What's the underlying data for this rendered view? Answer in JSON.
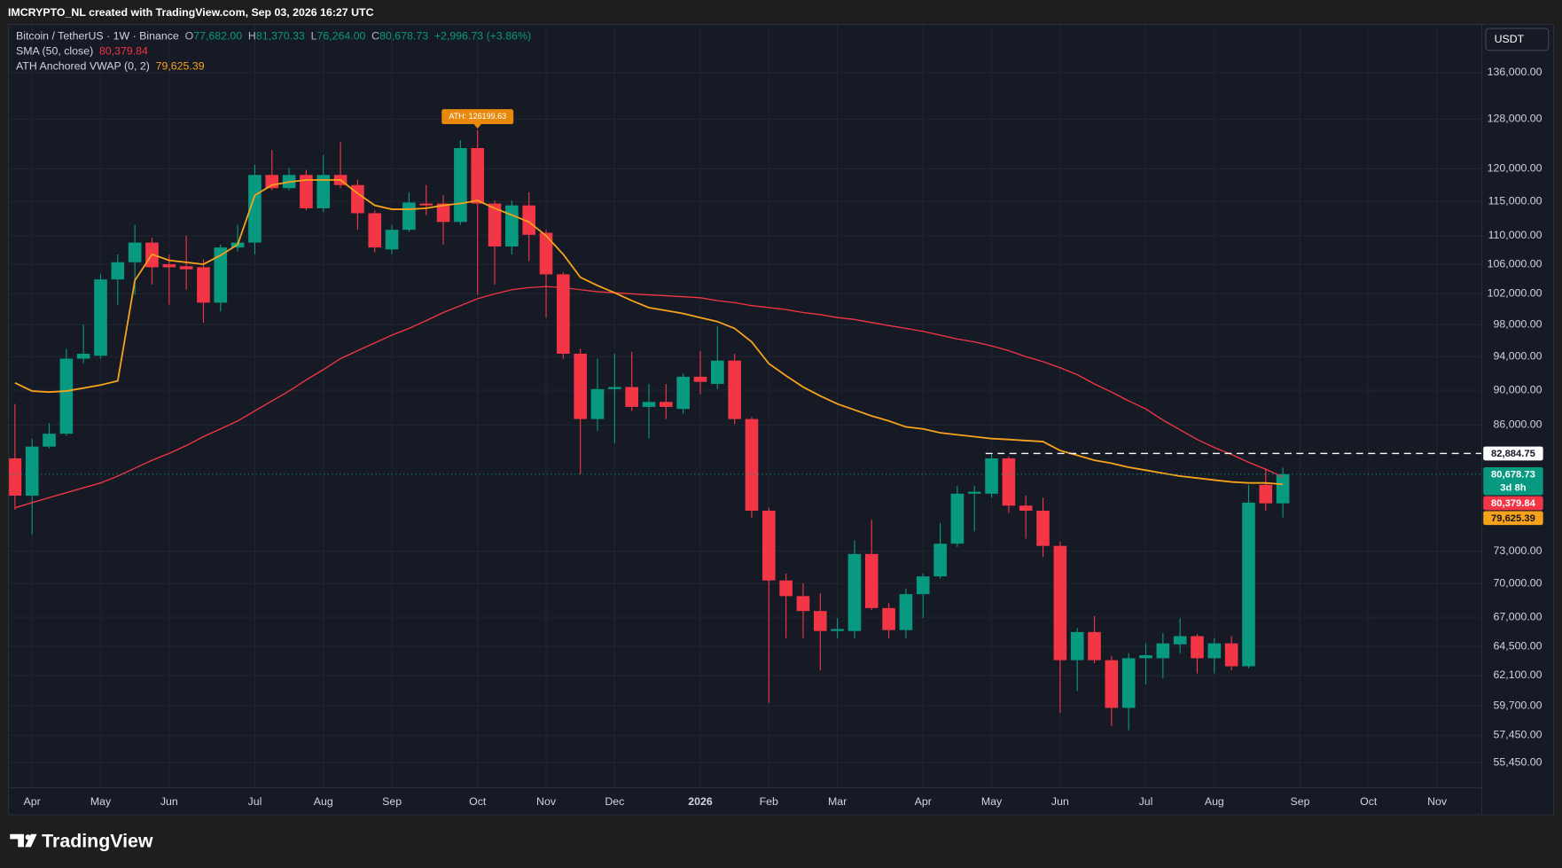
{
  "header": {
    "credit": "IMCRYPTO_NL created with TradingView.com, Sep 03, 2026 16:27 UTC",
    "symbol": "Bitcoin / TetherUS · 1W · Binance",
    "ohlc": [
      [
        "O",
        "77,682.00"
      ],
      [
        "H",
        "81,370.33"
      ],
      [
        "L",
        "76,264.00"
      ],
      [
        "C",
        "80,678.73"
      ]
    ],
    "change": "+2,996.73 (+3.86%)",
    "currency": "USDT"
  },
  "footer": {
    "logo": "TradingView"
  },
  "chart_data": {
    "type": "candlestick",
    "categories": [
      null,
      "Apr",
      null,
      null,
      null,
      "May",
      null,
      null,
      null,
      "Jun",
      null,
      null,
      null,
      null,
      "Jul",
      null,
      null,
      null,
      "Aug",
      null,
      null,
      null,
      "Sep",
      null,
      null,
      null,
      null,
      "Oct",
      null,
      null,
      null,
      "Nov",
      null,
      null,
      null,
      "Dec",
      null,
      null,
      null,
      null,
      "2026",
      null,
      null,
      null,
      "Feb",
      null,
      null,
      null,
      "Mar",
      null,
      null,
      null,
      null,
      "Apr",
      null,
      null,
      null,
      "May",
      null,
      null,
      null,
      "Jun",
      null,
      null,
      null,
      null,
      "Jul",
      null,
      null,
      null,
      "Aug",
      null,
      null,
      null,
      null,
      "Sep",
      null,
      null,
      null,
      "Oct",
      null,
      null,
      null,
      "Nov",
      null,
      null
    ],
    "open": [
      82360,
      78460,
      83630,
      85040,
      93760,
      94120,
      103930,
      106280,
      109030,
      106000,
      105720,
      105590,
      100840,
      108340,
      109030,
      119060,
      117030,
      119060,
      114000,
      119060,
      117500,
      113280,
      108070,
      110860,
      114710,
      114710,
      112000,
      123290,
      114710,
      108480,
      114430,
      110430,
      104620,
      94360,
      86680,
      90120,
      90360,
      88060,
      88630,
      87830,
      91580,
      90730,
      93520,
      86680,
      76940,
      70270,
      68850,
      67530,
      65800,
      65800,
      72730,
      67790,
      65880,
      69030,
      70640,
      73710,
      78660,
      78660,
      82360,
      77450,
      76940,
      73500,
      63350,
      65710,
      63350,
      59540,
      63510,
      63510,
      64670,
      65360,
      63510,
      64750,
      62850,
      79570,
      77682,
      null,
      null,
      null,
      null,
      null,
      null,
      null,
      null,
      null,
      null,
      null
    ],
    "high": [
      88400,
      84500,
      86230,
      94970,
      98000,
      104620,
      107380,
      111570,
      109720,
      107380,
      110000,
      106690,
      108760,
      111570,
      120630,
      122980,
      120160,
      119840,
      122200,
      124230,
      118280,
      113710,
      111570,
      116410,
      117500,
      115940,
      124550,
      126199.63,
      115140,
      115140,
      116410,
      110860,
      104900,
      94970,
      93760,
      94360,
      94600,
      90730,
      90730,
      91940,
      94730,
      97760,
      94360,
      86910,
      77240,
      70910,
      70000,
      69110,
      66910,
      74010,
      76030,
      68230,
      69550,
      70910,
      75720,
      79470,
      79470,
      82884.75,
      82570,
      78460,
      78260,
      73910,
      66050,
      67090,
      63680,
      63930,
      64750,
      65620,
      66910,
      65530,
      65190,
      65360,
      79570,
      81310,
      81370.33,
      null,
      null,
      null,
      null,
      null,
      null,
      null,
      null,
      null,
      null,
      null
    ],
    "low": [
      77040,
      74600,
      83420,
      84820,
      93150,
      93760,
      100580,
      101870,
      103240,
      100580,
      102550,
      98260,
      99680,
      107790,
      107380,
      116720,
      116720,
      113710,
      113430,
      117030,
      110860,
      107650,
      107380,
      110570,
      112990,
      108760,
      111570,
      101870,
      103240,
      107380,
      106410,
      98900,
      93760,
      80679,
      85360,
      83950,
      87600,
      84500,
      86680,
      87260,
      89540,
      90120,
      86110,
      76230,
      59930,
      65190,
      65190,
      62520,
      65190,
      65190,
      67620,
      65190,
      65190,
      66910,
      70450,
      73400,
      74900,
      78260,
      76730,
      74200,
      72450,
      59150,
      60870,
      63100,
      58140,
      57840,
      61410,
      61870,
      63920,
      62270,
      62270,
      62520,
      62680,
      76940,
      76264,
      null,
      null,
      null,
      null,
      null,
      null,
      null,
      null,
      null,
      null,
      null
    ],
    "close": [
      78460,
      83630,
      85040,
      93760,
      94360,
      103930,
      106280,
      109030,
      105590,
      105590,
      105310,
      100840,
      108340,
      109030,
      119060,
      117030,
      119060,
      114000,
      119060,
      117500,
      113280,
      108340,
      110860,
      114860,
      114430,
      112000,
      123290,
      114710,
      108480,
      114430,
      110140,
      104620,
      94360,
      86680,
      90120,
      90360,
      88060,
      88630,
      88060,
      91580,
      90970,
      93520,
      86680,
      76940,
      70270,
      68850,
      67530,
      65800,
      65970,
      72730,
      67790,
      65880,
      69030,
      70640,
      73710,
      78660,
      78860,
      82360,
      77450,
      76940,
      73500,
      63350,
      65710,
      63350,
      59540,
      63510,
      63760,
      64750,
      65360,
      63510,
      64750,
      62850,
      77750,
      77682,
      80678.73,
      null,
      null,
      null,
      null,
      null,
      null,
      null,
      null,
      null,
      null,
      null
    ],
    "up_color": "#089981",
    "down_color": "#f23645",
    "series": [
      {
        "name": "SMA (50, close)",
        "color": "#f23645",
        "label": "80,379.84",
        "values": [
          77240,
          77750,
          78260,
          78760,
          79260,
          79770,
          80480,
          81310,
          82150,
          82885,
          83740,
          84710,
          85570,
          86460,
          87600,
          88750,
          89890,
          91210,
          92430,
          93760,
          94730,
          95700,
          96670,
          97520,
          98520,
          99550,
          100450,
          101360,
          102000,
          102550,
          102830,
          102970,
          102830,
          102550,
          102280,
          102140,
          102000,
          101870,
          101740,
          101610,
          101480,
          101100,
          100840,
          100450,
          100190,
          99940,
          99550,
          99290,
          98900,
          98650,
          98260,
          97880,
          97520,
          97150,
          96670,
          96180,
          95820,
          95330,
          94730,
          94000,
          93400,
          92660,
          91820,
          90730,
          89770,
          88750,
          87830,
          86570,
          85470,
          84400,
          83520,
          82780,
          81940,
          81200,
          80379.84,
          null,
          null,
          null,
          null,
          null,
          null,
          null,
          null,
          null,
          null,
          null
        ]
      },
      {
        "name": "ATH Anchored VWAP (0, 2)",
        "color": "#f7a21b",
        "label": "79,625.39",
        "values": [
          90850,
          89890,
          89770,
          89890,
          90240,
          90610,
          91090,
          103790,
          107380,
          106550,
          106280,
          106000,
          107240,
          108760,
          115940,
          117500,
          117970,
          118280,
          118280,
          118280,
          116250,
          114430,
          113860,
          113860,
          114000,
          114430,
          114710,
          115160,
          114000,
          113000,
          112000,
          110000,
          107380,
          104210,
          103110,
          102140,
          101100,
          100190,
          99810,
          99420,
          98900,
          98390,
          97520,
          95820,
          93150,
          91700,
          90360,
          89320,
          88400,
          87720,
          87030,
          86460,
          85790,
          85570,
          85140,
          84920,
          84710,
          84500,
          84400,
          84290,
          84180,
          83200,
          82680,
          82150,
          81830,
          81410,
          81100,
          80780,
          80480,
          80280,
          80070,
          79870,
          79770,
          79770,
          79625.39,
          null,
          null,
          null,
          null,
          null,
          null,
          null,
          null,
          null,
          null,
          null
        ]
      }
    ],
    "ylim": [
      53700,
      144700
    ],
    "log_scale": true,
    "grid": true,
    "yticks": [
      {
        "value": 136000,
        "label": "136,000.00"
      },
      {
        "value": 128000,
        "label": "128,000.00"
      },
      {
        "value": 120000,
        "label": "120,000.00"
      },
      {
        "value": 115000,
        "label": "115,000.00"
      },
      {
        "value": 110000,
        "label": "110,000.00"
      },
      {
        "value": 106000,
        "label": "106,000.00"
      },
      {
        "value": 102000,
        "label": "102,000.00"
      },
      {
        "value": 98000,
        "label": "98,000.00"
      },
      {
        "value": 94000,
        "label": "94,000.00"
      },
      {
        "value": 90000,
        "label": "90,000.00"
      },
      {
        "value": 86000,
        "label": "86,000.00"
      },
      {
        "value": 73000,
        "label": "73,000.00"
      },
      {
        "value": 70000,
        "label": "70,000.00"
      },
      {
        "value": 67000,
        "label": "67,000.00"
      },
      {
        "value": 64500,
        "label": "64,500.00"
      },
      {
        "value": 62100,
        "label": "62,100.00"
      },
      {
        "value": 59700,
        "label": "59,700.00"
      },
      {
        "value": 57450,
        "label": "57,450.00"
      },
      {
        "value": 55450,
        "label": "55,450.00"
      }
    ],
    "level": {
      "value": 82884.75,
      "label": "82,884.75"
    },
    "last_price_label": "80,678.73",
    "countdown": "3d 8h",
    "ath_label": "ATH: 126199.63",
    "ath_color": "#e8890c"
  }
}
